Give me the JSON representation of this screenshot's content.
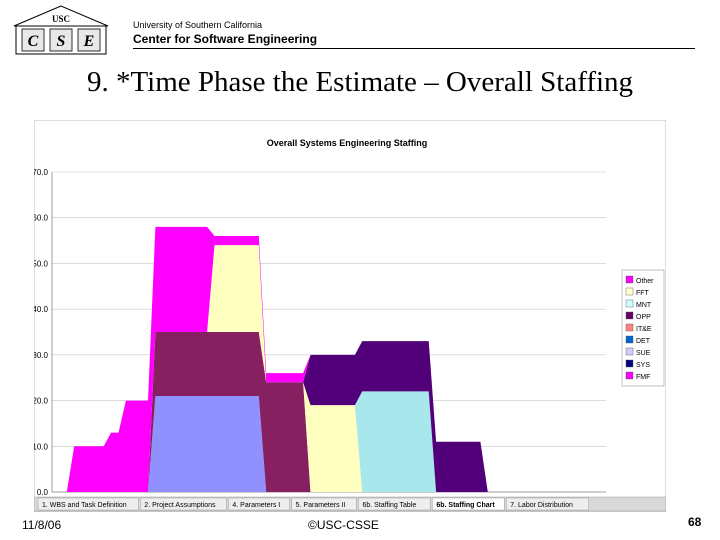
{
  "header": {
    "logo_letters": [
      "C",
      "S",
      "E"
    ],
    "logo_mark": "USC",
    "institution": "University of Southern California",
    "center": "Center for Software  Engineering"
  },
  "slide_title": "9. *Time Phase the Estimate – Overall Staffing",
  "footer": {
    "date": "11/8/06",
    "copyright": "©USC-CSSE",
    "page": "68"
  },
  "sheet_tabs": [
    "1. WBS and Task Definition",
    "2. Project Assumptions",
    "4. Parameters I",
    "5. Parameters II",
    "6b. Staffing Table",
    "6b. Staffing Chart",
    "7. Labor Distribution"
  ],
  "colors": {
    "Other": "#ff00ff",
    "FFT": "#ffffcc",
    "MNT": "#ccffff",
    "OPP": "#660066",
    "IT&E": "#ff8080",
    "DET": "#0066cc",
    "SUE": "#ccccff",
    "SYS": "#000080",
    "FMF": "#ff00ff"
  },
  "chart_data": {
    "type": "area",
    "title": "Overall Systems Engineering Staffing",
    "ylim": [
      0,
      70
    ],
    "yticks": [
      "0.0",
      "10.0",
      "20.0",
      "30.0",
      "40.0",
      "50.0",
      "60.0",
      "70.0"
    ],
    "grid": true,
    "legend_placement": "right",
    "legend": [
      "Other",
      "FFT",
      "MNT",
      "OPP",
      "IT&E",
      "DET",
      "SUE",
      "SYS",
      "FMF"
    ],
    "x": [
      0,
      1,
      2,
      3,
      4,
      5,
      6,
      7,
      8,
      9,
      10,
      11,
      12,
      13,
      14,
      15,
      16,
      17,
      18,
      19,
      20,
      21,
      22,
      23,
      24,
      25,
      26,
      27,
      28,
      29,
      30,
      31,
      32,
      33,
      34,
      35,
      36,
      37,
      38,
      39,
      40,
      41,
      42,
      43,
      44,
      45,
      46,
      47,
      48,
      49,
      50,
      51,
      52,
      53,
      54,
      55,
      56,
      57,
      58,
      59,
      60,
      61,
      62,
      63,
      64,
      65,
      66,
      67,
      68,
      69,
      70,
      71,
      72,
      73,
      74,
      75
    ],
    "series": [
      {
        "name": "SUE",
        "color": "#9090ff",
        "values": [
          0,
          0,
          0,
          0,
          0,
          0,
          0,
          0,
          0,
          0,
          0,
          0,
          0,
          0,
          21,
          21,
          21,
          21,
          21,
          21,
          21,
          21,
          21,
          21,
          21,
          21,
          21,
          21,
          21,
          0,
          0,
          0,
          0,
          0,
          0,
          0,
          0,
          0,
          0,
          0,
          0,
          0,
          0,
          0,
          0,
          0,
          0,
          0,
          0,
          0,
          0,
          0,
          0,
          0,
          0,
          0,
          0,
          0,
          0,
          0,
          0,
          0,
          0,
          0,
          0,
          0,
          0,
          0,
          0,
          0,
          0,
          0,
          0,
          0,
          0,
          0
        ]
      },
      {
        "name": "OPP",
        "color": "#862060",
        "values": [
          0,
          0,
          0,
          0,
          0,
          0,
          0,
          0,
          0,
          0,
          0,
          0,
          0,
          0,
          14,
          14,
          14,
          14,
          14,
          14,
          14,
          14,
          14,
          14,
          14,
          14,
          14,
          14,
          14,
          24,
          24,
          24,
          24,
          24,
          24,
          0,
          0,
          0,
          0,
          0,
          0,
          0,
          0,
          0,
          0,
          0,
          0,
          0,
          0,
          0,
          0,
          0,
          0,
          0,
          0,
          0,
          0,
          0,
          0,
          0,
          0,
          0,
          0,
          0,
          0,
          0,
          0,
          0,
          0,
          0,
          0,
          0,
          0,
          0,
          0,
          0
        ]
      },
      {
        "name": "FFT",
        "color": "#ffffc0",
        "values": [
          0,
          0,
          0,
          0,
          0,
          0,
          0,
          0,
          0,
          0,
          0,
          0,
          0,
          0,
          0,
          0,
          0,
          0,
          0,
          0,
          0,
          0,
          19,
          19,
          19,
          19,
          19,
          19,
          19,
          0,
          0,
          0,
          0,
          0,
          0,
          19,
          19,
          19,
          19,
          19,
          19,
          19,
          0,
          0,
          0,
          0,
          0,
          0,
          0,
          0,
          0,
          0,
          0,
          0,
          0,
          0,
          0,
          0,
          0,
          0,
          0,
          0,
          0,
          0,
          0,
          0,
          0,
          0,
          0,
          0,
          0,
          0,
          0,
          0,
          0,
          0
        ]
      },
      {
        "name": "MNT",
        "color": "#a8e8ec",
        "values": [
          0,
          0,
          0,
          0,
          0,
          0,
          0,
          0,
          0,
          0,
          0,
          0,
          0,
          0,
          0,
          0,
          0,
          0,
          0,
          0,
          0,
          0,
          0,
          0,
          0,
          0,
          0,
          0,
          0,
          0,
          0,
          0,
          0,
          0,
          0,
          0,
          0,
          0,
          0,
          0,
          0,
          0,
          22,
          22,
          22,
          22,
          22,
          22,
          22,
          22,
          22,
          22,
          0,
          0,
          0,
          0,
          0,
          0,
          0,
          0,
          0,
          0,
          0,
          0,
          0,
          0,
          0,
          0,
          0,
          0,
          0,
          0,
          0,
          0,
          0,
          0
        ]
      },
      {
        "name": "IT&E",
        "color": "#52007a",
        "values": [
          0,
          0,
          0,
          0,
          0,
          0,
          0,
          0,
          0,
          0,
          0,
          0,
          0,
          0,
          0,
          0,
          0,
          0,
          0,
          0,
          0,
          0,
          0,
          0,
          0,
          0,
          0,
          0,
          0,
          0,
          0,
          0,
          0,
          0,
          0,
          11,
          11,
          11,
          11,
          11,
          11,
          11,
          11,
          11,
          11,
          11,
          11,
          11,
          11,
          11,
          11,
          11,
          11,
          11,
          11,
          11,
          11,
          11,
          11,
          0,
          0,
          0,
          0,
          0,
          0,
          0,
          0,
          0,
          0,
          0,
          0,
          0,
          0,
          0,
          0,
          0
        ]
      },
      {
        "name": "Other",
        "color": "#ff00ff",
        "values": [
          0,
          0,
          0,
          10,
          10,
          10,
          10,
          10,
          13,
          13,
          20,
          20,
          20,
          20,
          23,
          23,
          23,
          23,
          23,
          23,
          23,
          23,
          2,
          2,
          2,
          2,
          2,
          2,
          2,
          2,
          2,
          2,
          2,
          2,
          2,
          0,
          0,
          0,
          0,
          0,
          0,
          0,
          0,
          0,
          0,
          0,
          0,
          0,
          0,
          0,
          0,
          0,
          0,
          0,
          0,
          0,
          0,
          0,
          0,
          0,
          0,
          0,
          0,
          0,
          0,
          0,
          0,
          0,
          0,
          0,
          0,
          0,
          0,
          0,
          0,
          0
        ]
      }
    ]
  }
}
